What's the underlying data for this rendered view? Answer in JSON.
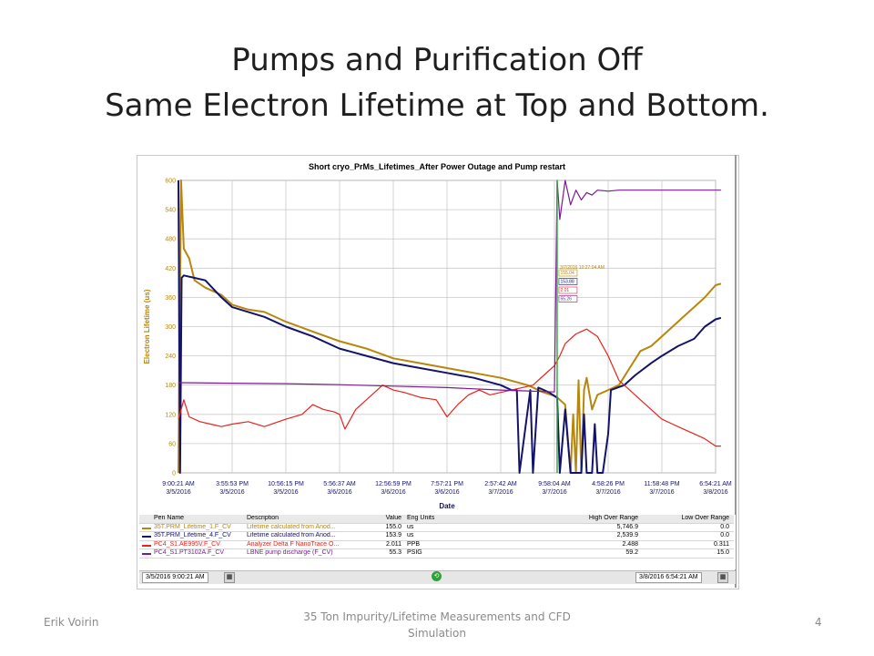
{
  "slide": {
    "title_line1": "Pumps and Purification Off",
    "title_line2": "Same Electron Lifetime at Top and Bottom.",
    "footer_left": "Erik Voirin",
    "footer_center": "35 Ton Impurity/Lifetime Measurements and CFD Simulation",
    "footer_right": "4"
  },
  "chart_data": {
    "type": "line",
    "title": "Short cryo_PrMs_Lifetimes_After Power Outage and Pump restart",
    "xlabel": "Date",
    "ylabel": "Electron Lifetime (us)",
    "ylim": [
      0,
      600
    ],
    "yticks": [
      "600",
      "540",
      "480",
      "420",
      "360",
      "300",
      "240",
      "180",
      "120",
      "60",
      "0"
    ],
    "xticks": [
      {
        "time": "9:00:21 AM",
        "date": "3/5/2016"
      },
      {
        "time": "3:55:53 PM",
        "date": "3/5/2016"
      },
      {
        "time": "10:56:15 PM",
        "date": "3/5/2016"
      },
      {
        "time": "5:56:37 AM",
        "date": "3/6/2016"
      },
      {
        "time": "12:56:59 PM",
        "date": "3/6/2016"
      },
      {
        "time": "7:57:21 PM",
        "date": "3/6/2016"
      },
      {
        "time": "2:57:42 AM",
        "date": "3/7/2016"
      },
      {
        "time": "9:58:04 AM",
        "date": "3/7/2016"
      },
      {
        "time": "4:58:26 PM",
        "date": "3/7/2016"
      },
      {
        "time": "11:58:48 PM",
        "date": "3/7/2016"
      },
      {
        "time": "6:54:21 AM",
        "date": "3/8/2016"
      }
    ],
    "grid": true,
    "colors": {
      "gold": "#b8860b",
      "navy": "#13136b",
      "red": "#e8231c",
      "purple": "#7a1b93",
      "cursor": "#3aa845"
    },
    "cursor": {
      "x_index": 7.05,
      "timestamp": "3/7/2016 10:27:04 AM",
      "readouts": [
        {
          "label": "155.04",
          "color": "#b8860b"
        },
        {
          "label": "153.88",
          "color": "#13136b"
        },
        {
          "label": "2.01",
          "color": "#e8231c"
        },
        {
          "label": "55.26",
          "color": "#7a1b93"
        }
      ]
    },
    "series": [
      {
        "name": "35T.PRM_Lifetime_1.F_CV",
        "color": "#b8860b",
        "points": [
          [
            0,
            0
          ],
          [
            0.05,
            600
          ],
          [
            0.1,
            460
          ],
          [
            0.2,
            440
          ],
          [
            0.3,
            395
          ],
          [
            0.5,
            380
          ],
          [
            0.8,
            365
          ],
          [
            1.0,
            345
          ],
          [
            1.3,
            335
          ],
          [
            1.6,
            330
          ],
          [
            2.0,
            310
          ],
          [
            2.5,
            290
          ],
          [
            3.0,
            270
          ],
          [
            3.5,
            255
          ],
          [
            4.0,
            235
          ],
          [
            4.5,
            225
          ],
          [
            5.0,
            215
          ],
          [
            5.5,
            205
          ],
          [
            6.0,
            195
          ],
          [
            6.5,
            180
          ],
          [
            6.8,
            165
          ],
          [
            7.0,
            158
          ],
          [
            7.05,
            155
          ],
          [
            7.1,
            150
          ],
          [
            7.2,
            140
          ],
          [
            7.3,
            0
          ],
          [
            7.35,
            120
          ],
          [
            7.4,
            0
          ],
          [
            7.45,
            190
          ],
          [
            7.5,
            0
          ],
          [
            7.55,
            170
          ],
          [
            7.6,
            195
          ],
          [
            7.7,
            130
          ],
          [
            7.8,
            160
          ],
          [
            8.0,
            170
          ],
          [
            8.2,
            180
          ],
          [
            8.4,
            215
          ],
          [
            8.6,
            250
          ],
          [
            8.8,
            260
          ],
          [
            9.0,
            280
          ],
          [
            9.2,
            300
          ],
          [
            9.4,
            320
          ],
          [
            9.6,
            340
          ],
          [
            9.8,
            360
          ],
          [
            10.0,
            385
          ],
          [
            10.1,
            388
          ]
        ]
      },
      {
        "name": "35T.PRM_Lifetime_4.F_CV",
        "color": "#13136b",
        "points": [
          [
            0,
            600
          ],
          [
            0.03,
            0
          ],
          [
            0.06,
            400
          ],
          [
            0.1,
            405
          ],
          [
            0.3,
            400
          ],
          [
            0.5,
            395
          ],
          [
            0.8,
            360
          ],
          [
            1.0,
            340
          ],
          [
            1.3,
            330
          ],
          [
            1.6,
            320
          ],
          [
            2.0,
            300
          ],
          [
            2.5,
            280
          ],
          [
            3.0,
            255
          ],
          [
            3.5,
            240
          ],
          [
            4.0,
            225
          ],
          [
            4.5,
            215
          ],
          [
            5.0,
            205
          ],
          [
            5.5,
            195
          ],
          [
            6.0,
            180
          ],
          [
            6.2,
            170
          ],
          [
            6.3,
            170
          ],
          [
            6.35,
            0
          ],
          [
            6.55,
            170
          ],
          [
            6.6,
            0
          ],
          [
            6.7,
            175
          ],
          [
            6.9,
            165
          ],
          [
            7.05,
            154
          ],
          [
            7.1,
            0
          ],
          [
            7.2,
            130
          ],
          [
            7.3,
            0
          ],
          [
            7.5,
            0
          ],
          [
            7.55,
            120
          ],
          [
            7.6,
            0
          ],
          [
            7.7,
            0
          ],
          [
            7.75,
            100
          ],
          [
            7.8,
            0
          ],
          [
            7.9,
            0
          ],
          [
            8.0,
            80
          ],
          [
            8.05,
            170
          ],
          [
            8.3,
            180
          ],
          [
            8.5,
            200
          ],
          [
            8.8,
            225
          ],
          [
            9.0,
            240
          ],
          [
            9.3,
            260
          ],
          [
            9.6,
            275
          ],
          [
            9.8,
            300
          ],
          [
            10.0,
            315
          ],
          [
            10.1,
            318
          ]
        ]
      },
      {
        "name": "PC4_S1.AE995V.F_CV",
        "color": "#e8231c",
        "points": [
          [
            0,
            110
          ],
          [
            0.1,
            150
          ],
          [
            0.2,
            115
          ],
          [
            0.4,
            105
          ],
          [
            0.6,
            100
          ],
          [
            0.8,
            95
          ],
          [
            1.0,
            100
          ],
          [
            1.3,
            105
          ],
          [
            1.6,
            95
          ],
          [
            2.0,
            110
          ],
          [
            2.3,
            120
          ],
          [
            2.5,
            140
          ],
          [
            2.7,
            130
          ],
          [
            2.9,
            125
          ],
          [
            3.0,
            120
          ],
          [
            3.1,
            90
          ],
          [
            3.3,
            130
          ],
          [
            3.6,
            160
          ],
          [
            3.8,
            180
          ],
          [
            4.0,
            170
          ],
          [
            4.2,
            165
          ],
          [
            4.5,
            155
          ],
          [
            4.8,
            150
          ],
          [
            5.0,
            115
          ],
          [
            5.2,
            140
          ],
          [
            5.4,
            160
          ],
          [
            5.6,
            170
          ],
          [
            5.8,
            160
          ],
          [
            6.0,
            165
          ],
          [
            6.2,
            170
          ],
          [
            6.4,
            175
          ],
          [
            6.6,
            180
          ],
          [
            6.8,
            200
          ],
          [
            7.0,
            220
          ],
          [
            7.1,
            240
          ],
          [
            7.2,
            265
          ],
          [
            7.4,
            285
          ],
          [
            7.6,
            295
          ],
          [
            7.8,
            280
          ],
          [
            8.0,
            240
          ],
          [
            8.2,
            190
          ],
          [
            8.4,
            170
          ],
          [
            8.6,
            150
          ],
          [
            8.8,
            130
          ],
          [
            9.0,
            110
          ],
          [
            9.2,
            100
          ],
          [
            9.4,
            90
          ],
          [
            9.6,
            80
          ],
          [
            9.8,
            70
          ],
          [
            10.0,
            55
          ],
          [
            10.1,
            55
          ]
        ]
      },
      {
        "name": "PC4_S1.PT3102A.F_CV",
        "color": "#7a1b93",
        "points": [
          [
            0,
            185
          ],
          [
            1.0,
            184
          ],
          [
            2.0,
            183
          ],
          [
            3.0,
            181
          ],
          [
            4.0,
            178
          ],
          [
            5.0,
            175
          ],
          [
            6.0,
            170
          ],
          [
            6.5,
            168
          ],
          [
            7.0,
            166
          ],
          [
            7.05,
            600
          ],
          [
            7.1,
            520
          ],
          [
            7.2,
            600
          ],
          [
            7.3,
            550
          ],
          [
            7.4,
            580
          ],
          [
            7.5,
            560
          ],
          [
            7.6,
            575
          ],
          [
            7.7,
            570
          ],
          [
            7.8,
            580
          ],
          [
            8.0,
            578
          ],
          [
            8.2,
            580
          ],
          [
            9.0,
            580
          ],
          [
            10.1,
            580
          ]
        ]
      }
    ],
    "legend": {
      "headers": [
        "Pen Name",
        "Description",
        "Value",
        "Eng Units",
        "High Over Range",
        "Low Over Range"
      ],
      "rows": [
        {
          "color": "#b8860b",
          "pen": "35T.PRM_Lifetime_1.F_CV",
          "desc": "Lifetime calculated from Anod...",
          "value": "155.0",
          "units": "us",
          "high": "5,746.9",
          "low": "0.0"
        },
        {
          "color": "#13136b",
          "pen": "35T.PRM_Lifetime_4.F_CV",
          "desc": "Lifetime calculated from Anod...",
          "value": "153.9",
          "units": "us",
          "high": "2,539.9",
          "low": "0.0"
        },
        {
          "color": "#e8231c",
          "pen": "PC4_S1.AE995V.F_CV",
          "desc": "Analyzer Delta F NanoTrace O...",
          "value": "2.011",
          "units": "PPB",
          "high": "2.488",
          "low": "0.311"
        },
        {
          "color": "#7a1b93",
          "pen": "PC4_S1.PT3102A.F_CV",
          "desc": "LBNE pump discharge (F_CV)",
          "value": "55.3",
          "units": "PSIG",
          "high": "59.2",
          "low": "15.0"
        }
      ]
    },
    "range_start": "3/5/2016 9:00:21 AM",
    "range_end": "3/8/2016 6:54:21 AM"
  }
}
